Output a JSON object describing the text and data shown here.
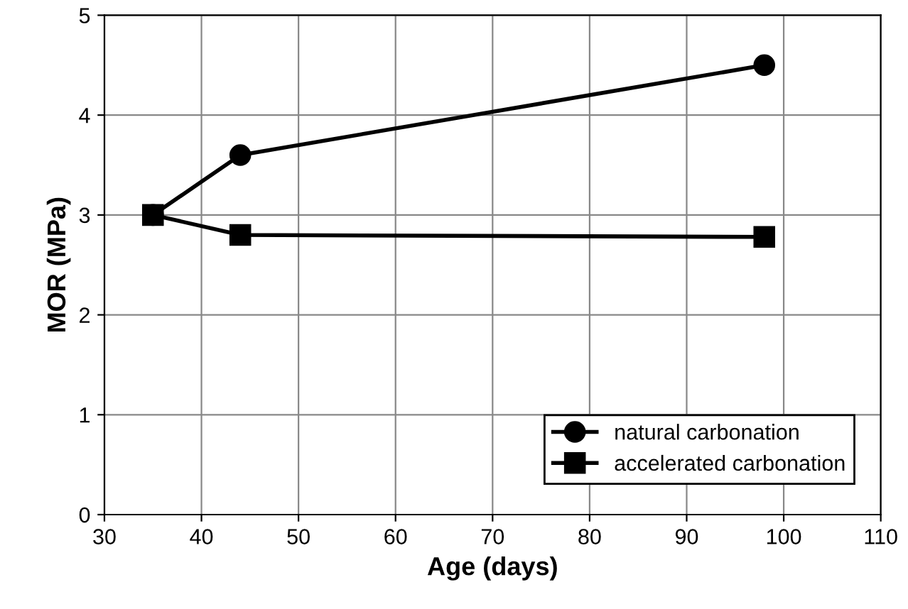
{
  "chart_data": {
    "type": "line",
    "xlabel": "Age (days)",
    "ylabel": "MOR (MPa)",
    "x": [
      35,
      44,
      98
    ],
    "series": [
      {
        "name": "natural carbonation",
        "color": "#000000",
        "marker": "circle",
        "values": [
          3.0,
          3.6,
          4.5
        ]
      },
      {
        "name": "accelerated carbonation",
        "color": "#000000",
        "marker": "square",
        "values": [
          3.0,
          2.8,
          2.78
        ]
      }
    ],
    "xlim": [
      30,
      110
    ],
    "xticks": [
      30,
      40,
      50,
      60,
      70,
      80,
      90,
      100,
      110
    ],
    "ylim": [
      0,
      5
    ],
    "yticks": [
      0,
      1,
      2,
      3,
      4,
      5
    ],
    "grid": true,
    "legend": "bottom right",
    "line_style": "solid"
  }
}
